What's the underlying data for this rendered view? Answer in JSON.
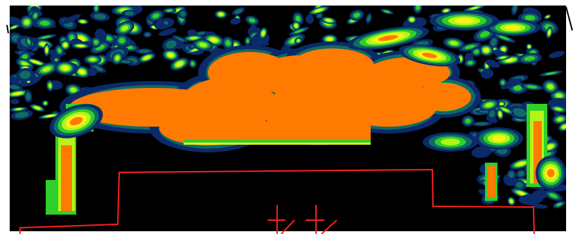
{
  "colors": {
    "background": "#000000",
    "deep": "#0a2a6a",
    "teal": "#0f6b63",
    "green": "#2fd02a",
    "lime": "#b6f31a",
    "yellow": "#f6f21a",
    "orange": "#ff7a00",
    "outline": "#ff2020",
    "page": "#ffffff"
  }
}
